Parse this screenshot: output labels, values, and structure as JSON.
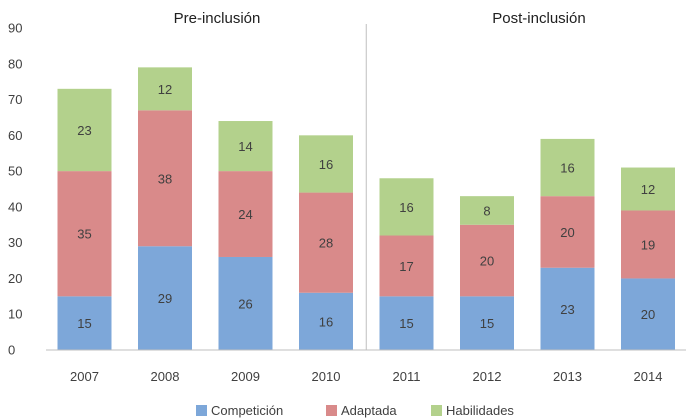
{
  "chart_data": {
    "type": "bar",
    "stacked": true,
    "categories": [
      "2007",
      "2008",
      "2009",
      "2010",
      "2011",
      "2012",
      "2013",
      "2014"
    ],
    "series": [
      {
        "name": "Competición",
        "color": "#7da7d9",
        "values": [
          15,
          29,
          26,
          16,
          15,
          15,
          23,
          20
        ]
      },
      {
        "name": "Adaptada",
        "color": "#d98a8a",
        "values": [
          35,
          38,
          24,
          28,
          17,
          20,
          20,
          19
        ]
      },
      {
        "name": "Habilidades",
        "color": "#b3d18c",
        "values": [
          23,
          12,
          14,
          16,
          16,
          8,
          16,
          12
        ]
      }
    ],
    "ylim": [
      0,
      90
    ],
    "yticks": [
      0,
      10,
      20,
      30,
      40,
      50,
      60,
      70,
      80,
      90
    ],
    "grid": false,
    "legend_position": "bottom",
    "panels": [
      {
        "title": "Pre-inclusión",
        "categories": [
          "2007",
          "2008",
          "2009",
          "2010"
        ]
      },
      {
        "title": "Post-inclusión",
        "categories": [
          "2011",
          "2012",
          "2013",
          "2014"
        ]
      }
    ]
  }
}
